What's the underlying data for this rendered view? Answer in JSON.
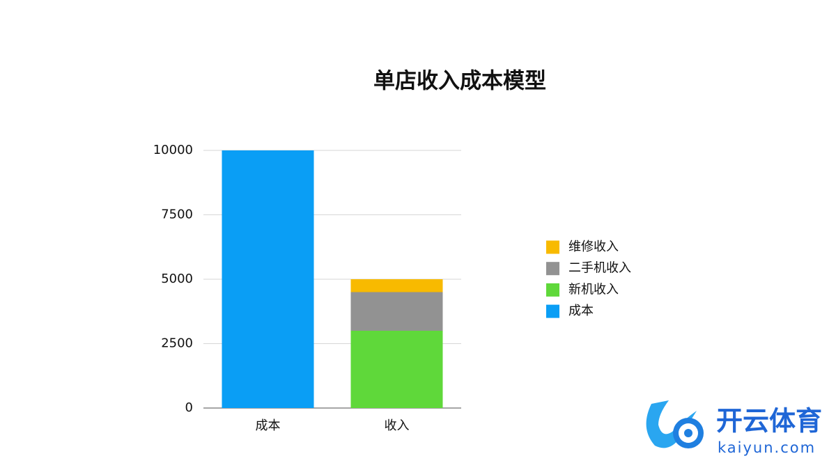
{
  "chart_data": {
    "type": "stacked_bar",
    "title": "单店收入成本模型",
    "categories": [
      "成本",
      "收入"
    ],
    "series": [
      {
        "name": "成本",
        "color": "#0a9ef5",
        "values": [
          10000,
          null
        ]
      },
      {
        "name": "新机收入",
        "color": "#5fd83a",
        "values": [
          null,
          3000
        ]
      },
      {
        "name": "二手机收入",
        "color": "#929292",
        "values": [
          null,
          1500
        ]
      },
      {
        "name": "维修收入",
        "color": "#f8ba00",
        "values": [
          null,
          500
        ]
      }
    ],
    "ylim": [
      0,
      10000
    ],
    "yticks": [
      0,
      2500,
      5000,
      7500,
      10000
    ],
    "grid": true,
    "legend": "right"
  },
  "watermark": {
    "brand": "开云体育",
    "site": "kaiyun.com"
  }
}
